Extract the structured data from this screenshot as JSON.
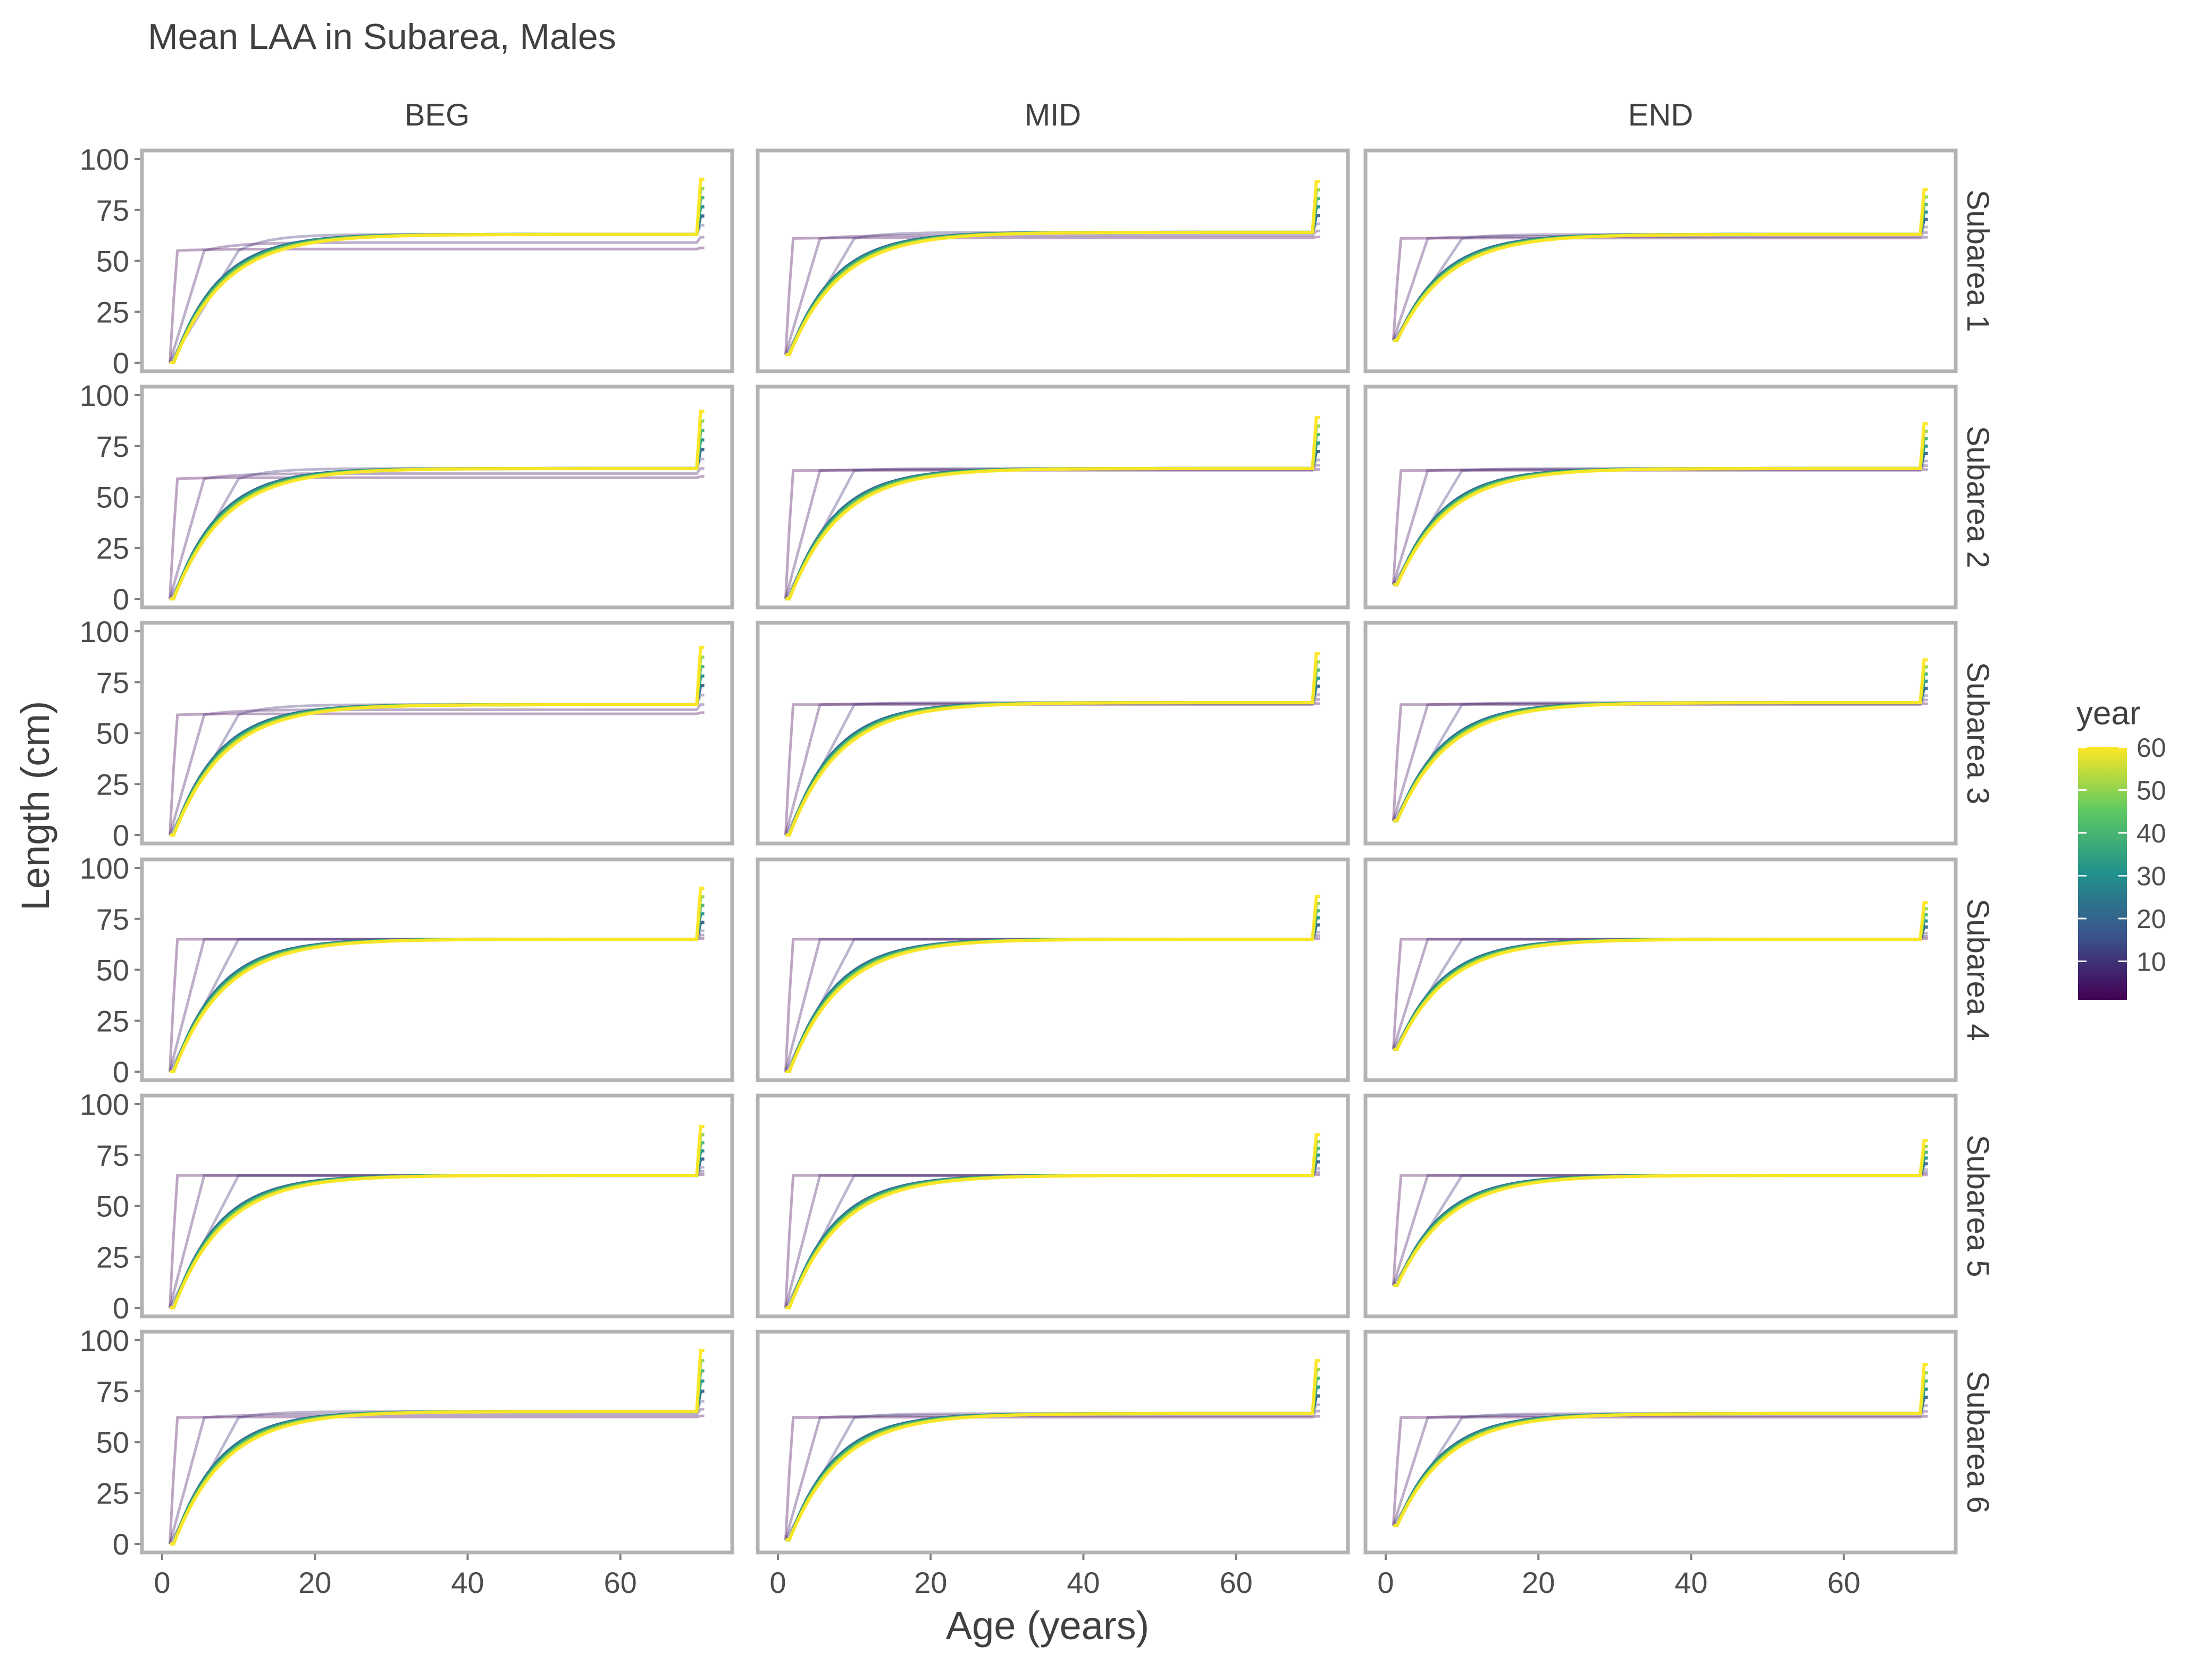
{
  "chart_data": {
    "type": "line",
    "title": "Mean LAA in Subarea, Males",
    "xlabel": "Age (years)",
    "ylabel": "Length (cm)",
    "xlim": [
      0,
      72
    ],
    "ylim": [
      0,
      100
    ],
    "x_ticks": [
      0,
      20,
      40,
      60
    ],
    "y_ticks": [
      0,
      25,
      50,
      75,
      100
    ],
    "columns": [
      "BEG",
      "MID",
      "END"
    ],
    "rows": [
      "Subarea 1",
      "Subarea 2",
      "Subarea 3",
      "Subarea 4",
      "Subarea 5",
      "Subarea 6"
    ],
    "legend": {
      "title": "year",
      "position": "right",
      "range": [
        1,
        60
      ],
      "ticks": [
        10,
        20,
        30,
        40,
        50,
        60
      ],
      "colors": [
        "#440154",
        "#3b528b",
        "#21918c",
        "#5ec962",
        "#fde725"
      ]
    },
    "grid": false,
    "series_note_years": [
      1,
      5,
      10,
      20,
      30,
      40,
      50,
      60
    ],
    "panels": [
      {
        "row": "Subarea 1",
        "col": "BEG",
        "linf": 63,
        "start": 0,
        "final_jump": 90,
        "early_plateau": 55
      },
      {
        "row": "Subarea 1",
        "col": "MID",
        "linf": 64,
        "start": 4,
        "final_jump": 89,
        "early_plateau": 61
      },
      {
        "row": "Subarea 1",
        "col": "END",
        "linf": 63,
        "start": 11,
        "final_jump": 85,
        "early_plateau": 61
      },
      {
        "row": "Subarea 2",
        "col": "BEG",
        "linf": 64,
        "start": 0,
        "final_jump": 92,
        "early_plateau": 59
      },
      {
        "row": "Subarea 2",
        "col": "MID",
        "linf": 64,
        "start": 0,
        "final_jump": 89,
        "early_plateau": 63
      },
      {
        "row": "Subarea 2",
        "col": "END",
        "linf": 64,
        "start": 7,
        "final_jump": 86,
        "early_plateau": 63
      },
      {
        "row": "Subarea 3",
        "col": "BEG",
        "linf": 64,
        "start": 0,
        "final_jump": 92,
        "early_plateau": 59
      },
      {
        "row": "Subarea 3",
        "col": "MID",
        "linf": 65,
        "start": 0,
        "final_jump": 89,
        "early_plateau": 64
      },
      {
        "row": "Subarea 3",
        "col": "END",
        "linf": 65,
        "start": 7,
        "final_jump": 86,
        "early_plateau": 64
      },
      {
        "row": "Subarea 4",
        "col": "BEG",
        "linf": 65,
        "start": 0,
        "final_jump": 90,
        "early_plateau": 65
      },
      {
        "row": "Subarea 4",
        "col": "MID",
        "linf": 65,
        "start": 0,
        "final_jump": 86,
        "early_plateau": 65
      },
      {
        "row": "Subarea 4",
        "col": "END",
        "linf": 65,
        "start": 11,
        "final_jump": 83,
        "early_plateau": 65
      },
      {
        "row": "Subarea 5",
        "col": "BEG",
        "linf": 65,
        "start": 0,
        "final_jump": 89,
        "early_plateau": 65
      },
      {
        "row": "Subarea 5",
        "col": "MID",
        "linf": 65,
        "start": 0,
        "final_jump": 85,
        "early_plateau": 65
      },
      {
        "row": "Subarea 5",
        "col": "END",
        "linf": 65,
        "start": 11,
        "final_jump": 82,
        "early_plateau": 65
      },
      {
        "row": "Subarea 6",
        "col": "BEG",
        "linf": 65,
        "start": 0,
        "final_jump": 95,
        "early_plateau": 62
      },
      {
        "row": "Subarea 6",
        "col": "MID",
        "linf": 64,
        "start": 2,
        "final_jump": 90,
        "early_plateau": 62
      },
      {
        "row": "Subarea 6",
        "col": "END",
        "linf": 64,
        "start": 9,
        "final_jump": 88,
        "early_plateau": 62
      }
    ]
  }
}
